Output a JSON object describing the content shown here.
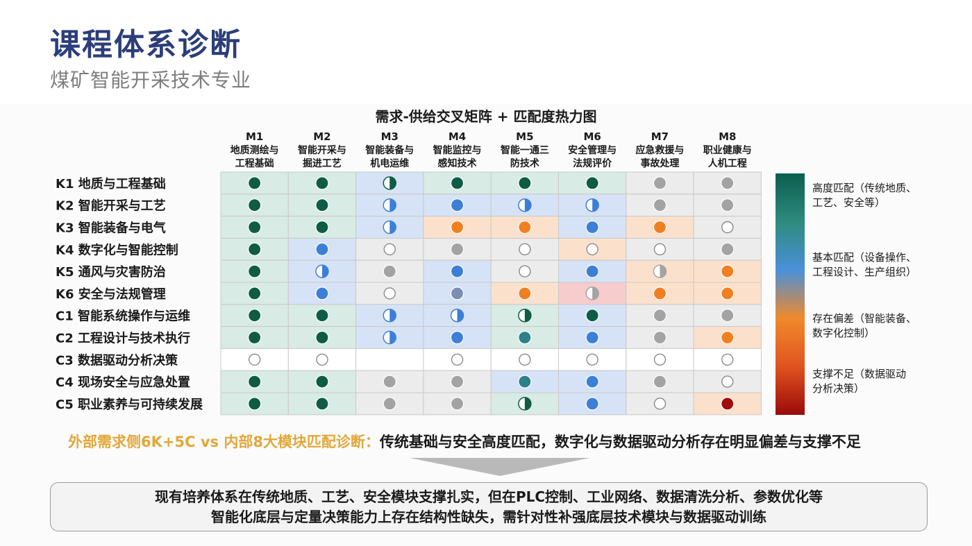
{
  "page": {
    "title": "课程体系诊断",
    "subtitle": "煤矿智能开采技术专业"
  },
  "chart_data": {
    "type": "heatmap",
    "title": "需求-供给交叉矩阵 + 匹配度热力图",
    "columns": [
      {
        "code": "M1",
        "line1": "地质测绘与",
        "line2": "工程基础"
      },
      {
        "code": "M2",
        "line1": "智能开采与",
        "line2": "掘进工艺"
      },
      {
        "code": "M3",
        "line1": "智能装备与",
        "line2": "机电运维"
      },
      {
        "code": "M4",
        "line1": "智能监控与",
        "line2": "感知技术"
      },
      {
        "code": "M5",
        "line1": "智能一通三",
        "line2": "防技术"
      },
      {
        "code": "M6",
        "line1": "安全管理与",
        "line2": "法规评价"
      },
      {
        "code": "M7",
        "line1": "应急救援与",
        "line2": "事故处理"
      },
      {
        "code": "M8",
        "line1": "职业健康与",
        "line2": "人机工程"
      }
    ],
    "rows": [
      "K1 地质与工程基础",
      "K2 智能开采与工艺",
      "K3 智能装备与电气",
      "K4 数字化与智能控制",
      "K5 通风与灾害防治",
      "K6 安全与法规管理",
      "C1 智能系统操作与运维",
      "C2 工程设计与技术执行",
      "C3 数据驱动分析决策",
      "C4 现场安全与应急处置",
      "C5 职业素养与可持续发展"
    ],
    "cell_backgrounds": [
      [
        "green",
        "green",
        "blue",
        "green",
        "green",
        "green",
        "grey",
        "grey"
      ],
      [
        "green",
        "green",
        "blue",
        "blue",
        "blue",
        "blue",
        "grey",
        "grey"
      ],
      [
        "green",
        "green",
        "blue",
        "orange",
        "orange",
        "blue",
        "orange",
        "grey"
      ],
      [
        "green",
        "blue",
        "grey",
        "grey",
        "grey",
        "orange",
        "grey",
        "grey"
      ],
      [
        "green",
        "blue",
        "grey",
        "blue",
        "grey",
        "blue",
        "orange",
        "orange"
      ],
      [
        "green",
        "blue",
        "grey",
        "blue",
        "orange",
        "red",
        "orange",
        "orange"
      ],
      [
        "green",
        "green",
        "blue",
        "blue",
        "green",
        "blue",
        "grey",
        "grey"
      ],
      [
        "green",
        "green",
        "blue",
        "blue",
        "green",
        "blue",
        "grey",
        "orange"
      ],
      [
        "white",
        "white",
        "white",
        "white",
        "white",
        "white",
        "white",
        "white"
      ],
      [
        "green",
        "green",
        "grey",
        "grey",
        "blue",
        "blue",
        "grey",
        "grey"
      ],
      [
        "green",
        "green",
        "grey",
        "grey",
        "green",
        "blue",
        "grey",
        "orange"
      ]
    ],
    "markers": [
      [
        "dark-green",
        "dark-green",
        "half-green",
        "dark-green",
        "dark-green",
        "dark-green",
        "grey",
        "grey"
      ],
      [
        "dark-green",
        "dark-green",
        "half-blue",
        "blue",
        "half-blue",
        "half-blue",
        "grey",
        "grey"
      ],
      [
        "dark-green",
        "dark-green",
        "half-blue",
        "orange",
        "orange",
        "blue",
        "orange",
        "empty"
      ],
      [
        "dark-green",
        "blue",
        "empty",
        "grey",
        "empty",
        "empty",
        "empty",
        "grey"
      ],
      [
        "dark-green",
        "half-blue",
        "grey",
        "blue",
        "empty",
        "blue",
        "half-grey",
        "orange"
      ],
      [
        "dark-green",
        "blue",
        "empty",
        "blue-grey",
        "orange",
        "half-grey",
        "orange",
        "orange"
      ],
      [
        "dark-green",
        "dark-green",
        "half-blue",
        "half-blue",
        "half-green",
        "dark-green",
        "grey",
        "grey"
      ],
      [
        "dark-green",
        "dark-green",
        "half-blue",
        "blue",
        "teal",
        "blue",
        "grey",
        "orange"
      ],
      [
        "empty",
        "empty",
        "none",
        "empty",
        "empty",
        "empty",
        "empty",
        "empty"
      ],
      [
        "dark-green",
        "dark-green",
        "grey",
        "grey",
        "teal",
        "blue",
        "grey",
        "empty"
      ],
      [
        "dark-green",
        "dark-green",
        "grey",
        "grey",
        "half-green",
        "blue",
        "empty",
        "dark-red"
      ]
    ],
    "legend": [
      {
        "line1": "高度匹配（传统地质、",
        "line2": "工艺、安全等）"
      },
      {
        "line1": "基本匹配（设备操作、",
        "line2": "工程设计、生产组织）"
      },
      {
        "line1": "存在偏差（智能装备、",
        "line2": "数字化控制）"
      },
      {
        "line1": "支撑不足（数据驱动",
        "line2": "分析决策）"
      }
    ],
    "colorbar": [
      "#0b5e4e",
      "#2e8b7e",
      "#4a90d9",
      "#f08a2c",
      "#e0531f",
      "#9b0a0a"
    ],
    "colors": {
      "dark-green": "#0f5c45",
      "teal": "#2d7f8a",
      "blue": "#3d7fd6",
      "blue-grey": "#7a8fb3",
      "orange": "#f07f22",
      "grey": "#a3a3a3",
      "dark-red": "#a10c0c",
      "empty-stroke": "#8a8a8a",
      "bg-green": "#d8ebe4",
      "bg-blue": "#d6e3f6",
      "bg-orange": "#fbe1cc",
      "bg-red": "#f7cccc",
      "bg-grey": "#ececec",
      "bg-white": "#ffffff"
    }
  },
  "headline": {
    "lead": "外部需求侧6K+5C vs 内部8大模块匹配诊断：",
    "rest": "传统基础与安全高度匹配，数字化与数据驱动分析存在明显偏差与支撑不足"
  },
  "summary": {
    "line1": "现有培养体系在传统地质、工艺、安全模块支撑扎实，但在PLC控制、工业网络、数据清洗分析、参数优化等",
    "line2": "智能化底层与定量决策能力上存在结构性缺失，需针对性补强底层技术模块与数据驱动训练"
  }
}
